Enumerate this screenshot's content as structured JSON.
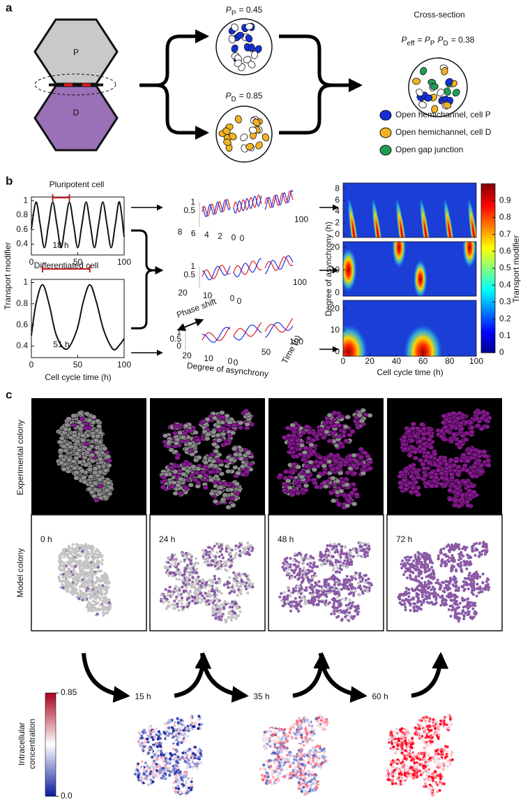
{
  "panel_a": {
    "letter": "a",
    "hex_top": "P",
    "hex_bottom": "D",
    "pp_label": {
      "symbol": "P",
      "subscript": "P",
      "rest": "= 0.45"
    },
    "pd_label": {
      "symbol": "P",
      "subscript": "D",
      "rest": "= 0.85"
    },
    "cross_section_title": "Cross-section",
    "peff_label": [
      {
        "text": "P"
      },
      {
        "text": "eff",
        "sub": true
      },
      {
        "text": "= "
      },
      {
        "text": "P"
      },
      {
        "text": "P",
        "sub": true
      },
      {
        "text": "P"
      },
      {
        "text": "D",
        "sub": true
      },
      {
        "text": "= 0.38"
      }
    ],
    "legend": [
      {
        "label": "Open hemichannel, cell P",
        "color": "#1530d8"
      },
      {
        "label": "Open hemichannel, cell D",
        "color": "#f4b322"
      },
      {
        "label": "Open gap junction",
        "color": "#1f9d57"
      }
    ],
    "hex_colors": [
      "#c9c9c9",
      "#9a70b6"
    ]
  },
  "panel_b": {
    "letter": "b",
    "y_label": "Transport modifier",
    "x_label": "Cell cycle time (h)",
    "plots": [
      {
        "title": "Pluripotent cell",
        "period_label": "18 h",
        "period_span": [
          23,
          41
        ],
        "x": [
          0,
          5,
          9.5,
          14,
          18.5,
          23,
          27.5,
          32,
          36.5,
          41,
          45.5,
          50,
          54.5,
          59,
          63.5,
          68,
          72.5,
          77,
          81.5,
          86,
          90.5,
          95,
          100
        ],
        "values": [
          0.61,
          0.98,
          0.67,
          0.35,
          0.67,
          0.98,
          0.67,
          0.35,
          0.67,
          0.98,
          0.67,
          0.35,
          0.67,
          0.98,
          0.67,
          0.35,
          0.67,
          0.98,
          0.67,
          0.35,
          0.67,
          0.98,
          0.5
        ],
        "xlim": [
          0,
          100
        ],
        "ylim": [
          0.25,
          1.05
        ],
        "xticks": [
          0,
          50,
          100
        ],
        "yticks": [
          0.4,
          0.6,
          0.8,
          1
        ]
      },
      {
        "title": "Differentiated cell",
        "period_label": "51 h",
        "period_span": [
          12,
          63
        ],
        "x": [
          0,
          5,
          12,
          19,
          27,
          38,
          49,
          56,
          63,
          70,
          78,
          88,
          95,
          100
        ],
        "values": [
          0.5,
          0.8,
          0.98,
          0.8,
          0.5,
          0.37,
          0.55,
          0.82,
          0.98,
          0.82,
          0.55,
          0.37,
          0.41,
          0.47
        ],
        "xlim": [
          0,
          100
        ],
        "ylim": [
          0.29,
          1.03
        ],
        "xticks": [
          0,
          50,
          100
        ],
        "yticks": [
          0.4,
          0.6,
          0.8,
          1
        ]
      }
    ],
    "waterfalls": [
      {
        "amplitude": [
          1,
          0.5
        ],
        "asynchrony": [
          8,
          6,
          4,
          2,
          0
        ],
        "time": [
          0,
          100
        ]
      },
      {
        "amplitude": [
          1,
          0.5
        ],
        "asynchrony": [
          20,
          10,
          0
        ],
        "time": [
          0,
          100
        ]
      },
      {
        "amplitude": [
          1,
          0.5,
          0
        ],
        "asynchrony": [
          20,
          10,
          0
        ],
        "time": [
          0,
          50,
          100
        ]
      }
    ],
    "phase_shift": "Phase shift",
    "waterfall_x_label": "Degree of asynchrony",
    "waterfall_time_label": "Time (h)",
    "heatmap": {
      "y_label": "Degree of asynchrony (h)",
      "x_label": "Cell cycle time (h)",
      "xlim": [
        0,
        100
      ],
      "xticks": [
        0,
        20,
        40,
        60,
        80,
        100
      ],
      "panels": [
        {
          "ylim": [
            -0.5,
            9
          ],
          "yticks": [
            0,
            2,
            4,
            6,
            8
          ]
        },
        {
          "ylim": [
            -1.5,
            22.5
          ],
          "yticks": [
            0,
            10,
            20
          ]
        },
        {
          "ylim": [
            -2,
            24
          ],
          "yticks": [
            0,
            10,
            20
          ]
        }
      ],
      "colorbar": {
        "label": "Transport modifier",
        "lim": [
          0,
          1
        ],
        "ticks": [
          0,
          0.1,
          0.2,
          0.3,
          0.4,
          0.5,
          0.6,
          0.7,
          0.8,
          0.9
        ]
      }
    }
  },
  "panel_c": {
    "letter": "c",
    "row_labels": [
      "Experimental colony",
      "Model colony"
    ],
    "times": [
      "0 h",
      "24 h",
      "48 h",
      "72 h"
    ],
    "intermediate_times": [
      "15 h",
      "35 h",
      "60 h"
    ],
    "colorbar": {
      "label": [
        "Intracellular",
        "concentration"
      ],
      "lim": [
        0,
        0.85
      ],
      "ticks": [
        0.85,
        {
          "value": 0,
          "label": "0.0"
        }
      ]
    }
  }
}
